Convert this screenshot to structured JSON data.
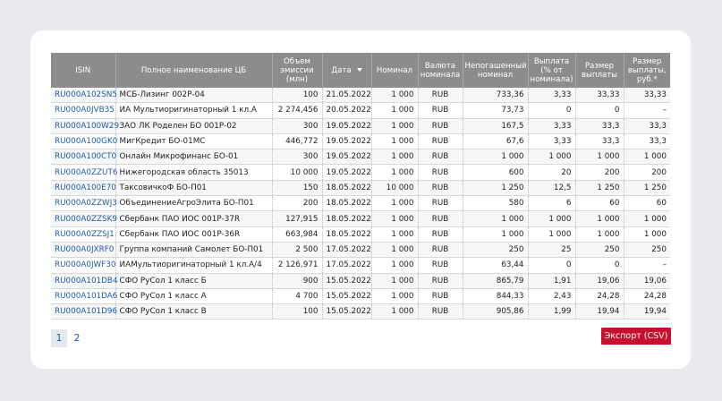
{
  "table": {
    "headers": [
      "ISIN",
      "Полное наименование ЦБ",
      "Объем эмиссии (млн)",
      "Дата",
      "Номинал",
      "Валюта номинала",
      "Непогашенный номинал",
      "Выплата (% от номинала)",
      "Размер выплаты",
      "Размер выплаты, руб.*"
    ],
    "rows": [
      [
        "RU000A102SN5",
        "МСБ-Лизинг 002Р-04",
        "100",
        "21.05.2022",
        "1 000",
        "RUB",
        "733,36",
        "3,33",
        "33,33",
        "33,33"
      ],
      [
        "RU000A0JVB35",
        "ИА Мультиоригинаторный 1 кл.А",
        "2 274,456",
        "20.05.2022",
        "1 000",
        "RUB",
        "73,73",
        "0",
        "0",
        "–"
      ],
      [
        "RU000A100W29",
        "ЗАО ЛК Роделен БО 001Р-02",
        "300",
        "19.05.2022",
        "1 000",
        "RUB",
        "167,5",
        "3,33",
        "33,3",
        "33,3"
      ],
      [
        "RU000A100GK0",
        "МигКредит БО-01МС",
        "446,772",
        "19.05.2022",
        "1 000",
        "RUB",
        "67,6",
        "3,33",
        "33,3",
        "33,3"
      ],
      [
        "RU000A100CT0",
        "Онлайн Микрофинанс БО-01",
        "300",
        "19.05.2022",
        "1 000",
        "RUB",
        "1 000",
        "1 000",
        "1 000",
        "1 000"
      ],
      [
        "RU000A0ZZUT6",
        "Нижегородская область 35013",
        "10 000",
        "19.05.2022",
        "1 000",
        "RUB",
        "600",
        "20",
        "200",
        "200"
      ],
      [
        "RU000A100E70",
        "ТаксовичкоФ БО-П01",
        "150",
        "18.05.2022",
        "10 000",
        "RUB",
        "1 250",
        "12,5",
        "1 250",
        "1 250"
      ],
      [
        "RU000A0ZZWJ3",
        "ОбъединениеАгроЭлита БО-П01",
        "200",
        "18.05.2022",
        "1 000",
        "RUB",
        "580",
        "6",
        "60",
        "60"
      ],
      [
        "RU000A0ZZSK9",
        "Сбербанк ПАО ИОС 001Р-37R",
        "127,915",
        "18.05.2022",
        "1 000",
        "RUB",
        "1 000",
        "1 000",
        "1 000",
        "1 000"
      ],
      [
        "RU000A0ZZSJ1",
        "Сбербанк ПАО ИОС 001Р-36R",
        "663,984",
        "18.05.2022",
        "1 000",
        "RUB",
        "1 000",
        "1 000",
        "1 000",
        "1 000"
      ],
      [
        "RU000A0JXRF0",
        "Группа компаний Самолет БО-П01",
        "2 500",
        "17.05.2022",
        "1 000",
        "RUB",
        "250",
        "25",
        "250",
        "250"
      ],
      [
        "RU000A0JWF30",
        "ИАМультиоригинаторный 1 кл.А/4",
        "2 126,971",
        "17.05.2022",
        "1 000",
        "RUB",
        "63,44",
        "0",
        "0",
        "–"
      ],
      [
        "RU000A101DB4",
        "СФО РуСол 1 класс Б",
        "900",
        "15.05.2022",
        "1 000",
        "RUB",
        "865,79",
        "1,91",
        "19,06",
        "19,06"
      ],
      [
        "RU000A101DA6",
        "СФО РуСол 1 класс А",
        "4 700",
        "15.05.2022",
        "1 000",
        "RUB",
        "844,33",
        "2,43",
        "24,28",
        "24,28"
      ],
      [
        "RU000A101D96",
        "СФО РуСол 1 класс В",
        "100",
        "15.05.2022",
        "1 000",
        "RUB",
        "905,86",
        "1,99",
        "19,94",
        "19,94"
      ]
    ]
  },
  "pagination": {
    "pages": [
      "1",
      "2"
    ],
    "active": "1"
  },
  "export_label": "Экспорт (CSV)",
  "colors": {
    "header_bg": "#8c8c8c",
    "link": "#1f5aa6",
    "export_bg": "#c8102e"
  }
}
